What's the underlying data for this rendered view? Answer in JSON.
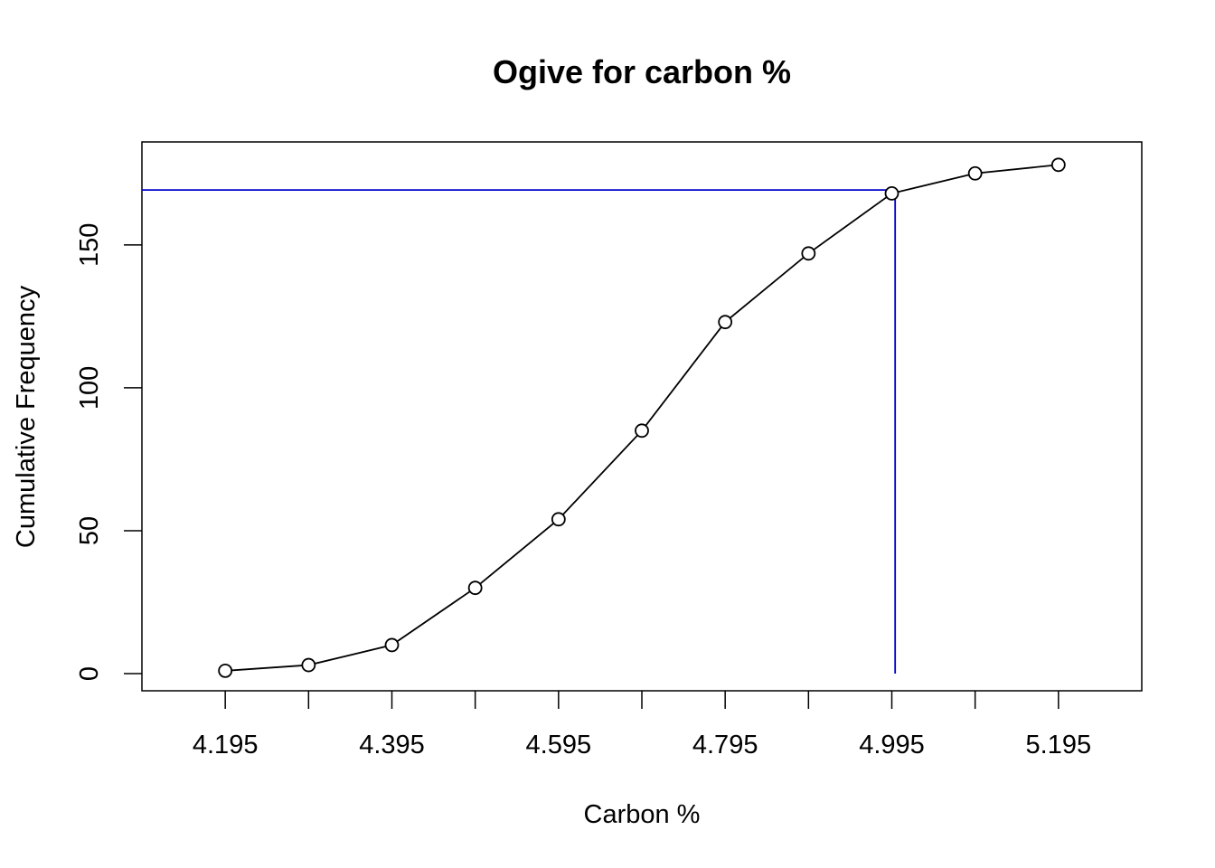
{
  "chart_data": {
    "type": "line",
    "title": "Ogive for carbon %",
    "xlabel": "Carbon %",
    "ylabel": "Cumulative Frequency",
    "x": [
      4.195,
      4.295,
      4.395,
      4.495,
      4.595,
      4.695,
      4.795,
      4.895,
      4.995,
      5.095,
      5.195
    ],
    "series": [
      {
        "values": [
          1,
          3,
          10,
          30,
          54,
          85,
          123,
          147,
          168,
          175,
          178
        ],
        "color": "#000000",
        "marker": "open-circle"
      }
    ],
    "xlim": [
      4.095,
      5.295
    ],
    "ylim": [
      -6,
      186
    ],
    "x_ticks": [
      4.195,
      4.295,
      4.395,
      4.495,
      4.595,
      4.695,
      4.795,
      4.895,
      4.995,
      5.095,
      5.195
    ],
    "x_tick_labels": [
      "4.195",
      "4.395",
      "4.595",
      "4.795",
      "4.995",
      "5.195"
    ],
    "y_ticks": [
      0,
      50,
      100,
      150
    ],
    "y_tick_labels": [
      "0",
      "50",
      "100",
      "150"
    ],
    "reference_lines": [
      {
        "orientation": "horizontal",
        "y": 169.2,
        "x_from": 4.095,
        "x_to": 4.999,
        "color": "#0000cc"
      },
      {
        "orientation": "vertical",
        "x": 4.999,
        "y_from": 0,
        "y_to": 169.2,
        "color": "#0000cc"
      }
    ],
    "grid": false,
    "legend": "none"
  }
}
